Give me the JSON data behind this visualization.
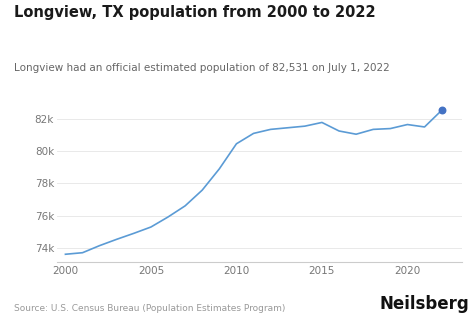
{
  "title": "Longview, TX population from 2000 to 2022",
  "subtitle": "Longview had an official estimated population of 82,531 on July 1, 2022",
  "source": "Source: U.S. Census Bureau (Population Estimates Program)",
  "brand": "Neilsberg",
  "years": [
    2000,
    2001,
    2002,
    2003,
    2004,
    2005,
    2006,
    2007,
    2008,
    2009,
    2010,
    2011,
    2012,
    2013,
    2014,
    2015,
    2016,
    2017,
    2018,
    2019,
    2020,
    2021,
    2022
  ],
  "population": [
    73598,
    73694,
    74135,
    74527,
    74897,
    75289,
    75912,
    76603,
    77580,
    78900,
    80455,
    81100,
    81350,
    81450,
    81550,
    81780,
    81250,
    81050,
    81350,
    81400,
    81650,
    81500,
    82531
  ],
  "line_color": "#5b9bd5",
  "dot_color": "#4472c4",
  "bg_color": "#ffffff",
  "title_fontsize": 10.5,
  "subtitle_fontsize": 7.5,
  "source_fontsize": 6.5,
  "brand_fontsize": 12,
  "yticks": [
    74000,
    76000,
    78000,
    80000,
    82000
  ],
  "xticks": [
    2000,
    2005,
    2010,
    2015,
    2020
  ],
  "xlim": [
    1999.5,
    2023.2
  ],
  "ylim": [
    73100,
    83300
  ]
}
